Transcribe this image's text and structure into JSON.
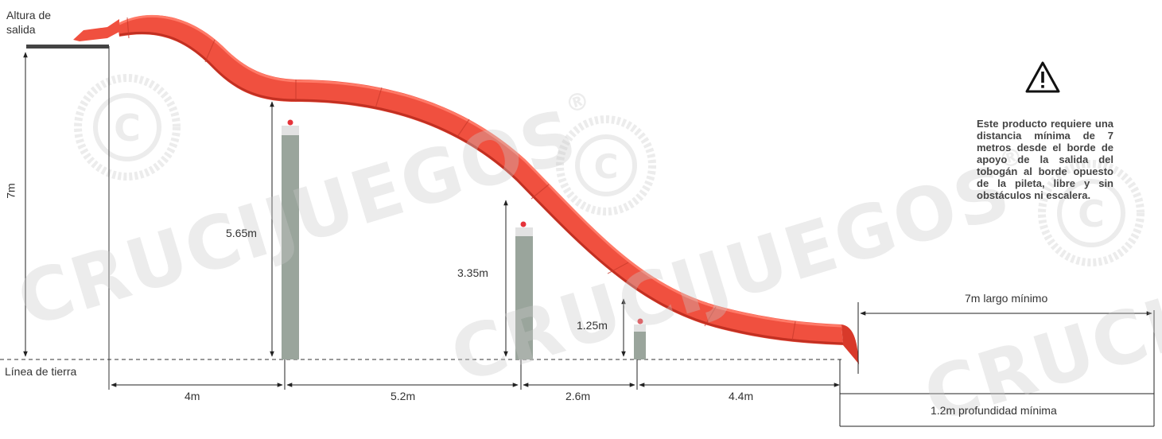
{
  "labels": {
    "altura_salida_line1": "Altura de",
    "altura_salida_line2": "salida",
    "linea_tierra": "Línea de tierra",
    "height_total": "7m",
    "post1_height": "5.65m",
    "post2_height": "3.35m",
    "post3_height": "1.25m",
    "span1": "4m",
    "span2": "5.2m",
    "span3": "2.6m",
    "span4": "4.4m",
    "pool_length": "7m largo mínimo",
    "pool_depth": "1.2m profundidad mínima"
  },
  "warning": {
    "icon": "warning-triangle-icon",
    "text": "Este producto requiere una distancia mínima de 7 metros desde el borde de apoyo de la salida del tobogán al borde opuesto de la pileta, libre y sin obstáculos ni escalera."
  },
  "watermark": {
    "brand": "CRUCIJUEGOS",
    "registered": "®"
  },
  "colors": {
    "slide": "#f0503f",
    "slide_dark": "#d8392a",
    "post": "#9aa59c",
    "post_cap": "#e0e0e0",
    "cap_dot": "#e5333a",
    "line": "#222222",
    "watermark": "#d0d0d0"
  }
}
